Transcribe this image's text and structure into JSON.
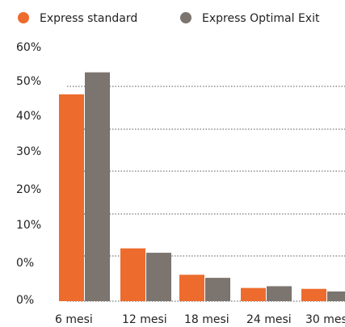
{
  "chart_data": {
    "type": "bar",
    "categories": [
      "6 mesi",
      "12 mesi",
      "18 mesi",
      "24 mesi",
      "30 mesi"
    ],
    "series": [
      {
        "name": "Express standard",
        "color": "#ed6b2d",
        "values": [
          47,
          12,
          6,
          3,
          2.8
        ]
      },
      {
        "name": "Express Optimal Exit",
        "color": "#7b746f",
        "values": [
          52,
          11,
          5.3,
          3.4,
          2.2
        ]
      }
    ],
    "y_tick_labels": [
      "60%",
      "50%",
      "40%",
      "30%",
      "20%",
      "10%",
      "0%",
      "0%"
    ],
    "grid": "dotted",
    "legend_position": "top-left"
  }
}
